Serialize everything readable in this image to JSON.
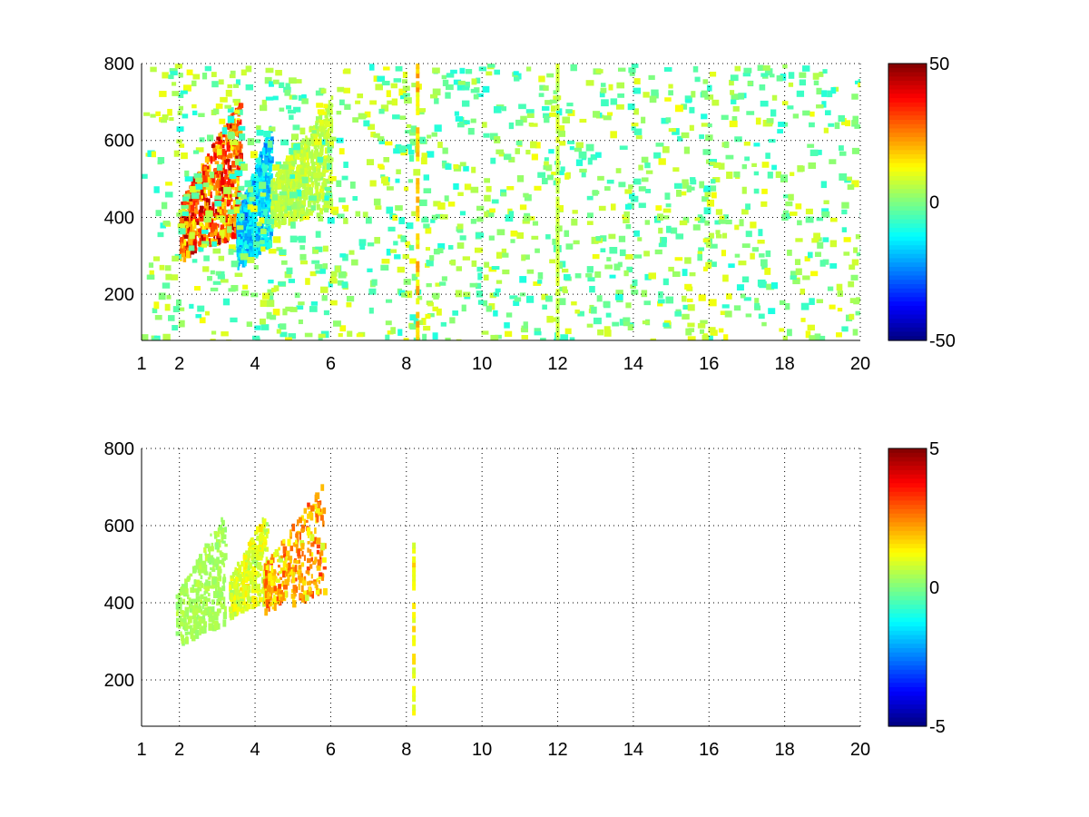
{
  "chart_data": [
    {
      "type": "heatmap",
      "title": "",
      "xlabel": "",
      "ylabel": "",
      "xlim": [
        1,
        20
      ],
      "ylim": [
        80,
        800
      ],
      "x_ticks": [
        1,
        2,
        4,
        6,
        8,
        10,
        12,
        14,
        16,
        18,
        20
      ],
      "y_ticks": [
        200,
        400,
        600,
        800
      ],
      "grid": true,
      "colorbar": {
        "colormap": "jet",
        "clim": [
          -50,
          50
        ],
        "ticks": [
          50,
          0,
          -50
        ]
      },
      "features": [
        {
          "shape": "blob",
          "x_range": [
            2.0,
            3.6
          ],
          "y_range": [
            300,
            720
          ],
          "value": 35
        },
        {
          "shape": "blob",
          "x_range": [
            3.5,
            4.4
          ],
          "y_range": [
            280,
            650
          ],
          "value": -20
        },
        {
          "shape": "blob",
          "x_range": [
            4.4,
            6.0
          ],
          "y_range": [
            380,
            720
          ],
          "value": 8
        },
        {
          "shape": "scatter_noise",
          "x_range": [
            1,
            20
          ],
          "y_range": [
            80,
            800
          ],
          "value_range": [
            -10,
            12
          ]
        },
        {
          "shape": "vertical_band",
          "x": 8.3,
          "y_range": [
            80,
            800
          ],
          "value": 20
        },
        {
          "shape": "vertical_band",
          "x": 12.0,
          "y_range": [
            80,
            800
          ],
          "value": 8
        }
      ]
    },
    {
      "type": "heatmap",
      "title": "",
      "xlabel": "",
      "ylabel": "",
      "xlim": [
        1,
        20
      ],
      "ylim": [
        80,
        800
      ],
      "x_ticks": [
        1,
        2,
        4,
        6,
        8,
        10,
        12,
        14,
        16,
        18,
        20
      ],
      "y_ticks": [
        200,
        400,
        600,
        800
      ],
      "grid": true,
      "colorbar": {
        "colormap": "jet",
        "clim": [
          -5,
          5
        ],
        "ticks": [
          5,
          0,
          -5
        ]
      },
      "features": [
        {
          "shape": "blob",
          "x_range": [
            1.9,
            3.2
          ],
          "y_range": [
            300,
            650
          ],
          "value": 0.5
        },
        {
          "shape": "blob",
          "x_range": [
            3.3,
            4.3
          ],
          "y_range": [
            370,
            650
          ],
          "value": 1.2
        },
        {
          "shape": "blob",
          "x_range": [
            4.2,
            5.8
          ],
          "y_range": [
            380,
            720
          ],
          "value": 2.5
        },
        {
          "shape": "vertical_band",
          "x": 8.2,
          "y_range": [
            110,
            560
          ],
          "value": 1.5
        }
      ]
    }
  ]
}
